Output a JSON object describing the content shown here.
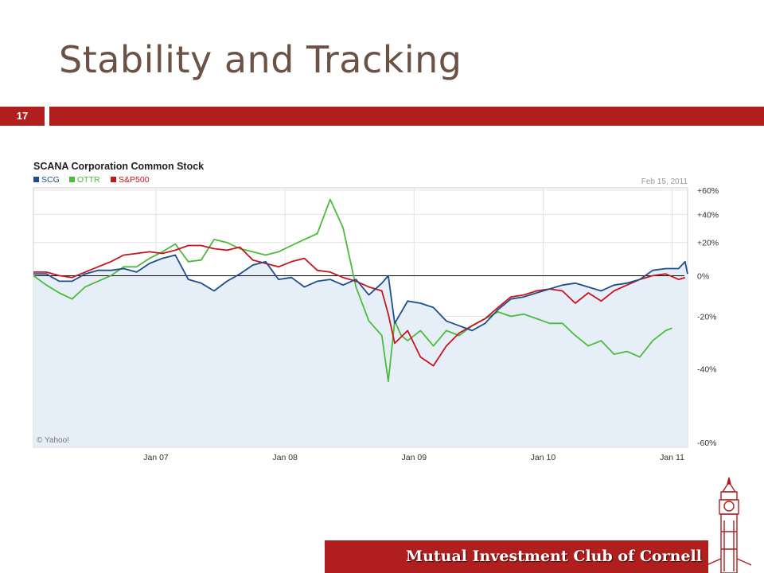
{
  "slide": {
    "title": "Stability and Tracking",
    "number": "17",
    "footer": "Mutual Investment Club of Cornell"
  },
  "colors": {
    "accent": "#b01e1e",
    "title": "#6b5245"
  },
  "chart_data": {
    "type": "line",
    "title": "SCANA Corporation Common Stock",
    "date_label": "Feb 15, 2011",
    "credit": "© Yahoo!",
    "x_labels": [
      "Jan 07",
      "Jan 08",
      "Jan 09",
      "Jan 10",
      "Jan 11"
    ],
    "x_range": [
      2006.05,
      2011.12
    ],
    "y_labels": [
      "+60%",
      "+40%",
      "+20%",
      "0%",
      "-20%",
      "-40%",
      "-60%"
    ],
    "y_tick_values": [
      60,
      40,
      20,
      0,
      -20,
      -40,
      -60
    ],
    "y_scale": "log-like (percent change)",
    "grid": true,
    "legend_position": "top-left",
    "series": [
      {
        "name": "SCG",
        "color": "#1f4e8c",
        "x": [
          2006.05,
          2006.15,
          2006.25,
          2006.35,
          2006.45,
          2006.55,
          2006.65,
          2006.75,
          2006.85,
          2006.95,
          2007.05,
          2007.15,
          2007.25,
          2007.35,
          2007.45,
          2007.55,
          2007.65,
          2007.75,
          2007.85,
          2007.95,
          2008.05,
          2008.15,
          2008.25,
          2008.35,
          2008.45,
          2008.55,
          2008.65,
          2008.75,
          2008.8,
          2008.85,
          2008.95,
          2009.05,
          2009.15,
          2009.25,
          2009.35,
          2009.45,
          2009.55,
          2009.65,
          2009.75,
          2009.85,
          2009.95,
          2010.05,
          2010.15,
          2010.25,
          2010.35,
          2010.45,
          2010.55,
          2010.65,
          2010.75,
          2010.85,
          2010.95,
          2011.05,
          2011.1,
          2011.12
        ],
        "y": [
          1,
          1,
          -3,
          -3,
          1,
          3,
          3,
          4,
          2,
          7,
          10,
          12,
          -2,
          -4,
          -8,
          -3,
          1,
          6,
          8,
          -2,
          -1,
          -6,
          -3,
          -2,
          -5,
          -2,
          -10,
          -4,
          0,
          -23,
          -13,
          -14,
          -16,
          -22,
          -24,
          -26,
          -23,
          -17,
          -12,
          -11,
          -9,
          -7,
          -5,
          -4,
          -6,
          -8,
          -5,
          -4,
          -2,
          3,
          4,
          4,
          8,
          1
        ]
      },
      {
        "name": "OTTR",
        "color": "#4cbb3c",
        "x": [
          2006.05,
          2006.15,
          2006.25,
          2006.35,
          2006.45,
          2006.55,
          2006.65,
          2006.75,
          2006.85,
          2006.95,
          2007.05,
          2007.15,
          2007.25,
          2007.35,
          2007.45,
          2007.55,
          2007.65,
          2007.75,
          2007.85,
          2007.95,
          2008.05,
          2008.15,
          2008.25,
          2008.35,
          2008.45,
          2008.55,
          2008.65,
          2008.75,
          2008.8,
          2008.85,
          2008.9,
          2008.95,
          2009.05,
          2009.15,
          2009.25,
          2009.35,
          2009.45,
          2009.55,
          2009.65,
          2009.75,
          2009.85,
          2009.95,
          2010.05,
          2010.15,
          2010.25,
          2010.35,
          2010.45,
          2010.55,
          2010.65,
          2010.75,
          2010.85,
          2010.95,
          2011.0
        ],
        "y": [
          0,
          -5,
          -9,
          -12,
          -6,
          -3,
          0,
          5,
          5,
          10,
          14,
          19,
          8,
          9,
          22,
          20,
          16,
          14,
          12,
          14,
          18,
          22,
          26,
          52,
          30,
          -6,
          -22,
          -28,
          -44,
          -22,
          -28,
          -30,
          -26,
          -32,
          -26,
          -28,
          -24,
          -21,
          -18,
          -20,
          -19,
          -21,
          -23,
          -23,
          -28,
          -32,
          -30,
          -35,
          -34,
          -36,
          -30,
          -26,
          -25
        ]
      },
      {
        "name": "S&P500",
        "color": "#c8141e",
        "x": [
          2006.05,
          2006.15,
          2006.25,
          2006.35,
          2006.45,
          2006.55,
          2006.65,
          2006.75,
          2006.85,
          2006.95,
          2007.05,
          2007.15,
          2007.25,
          2007.35,
          2007.45,
          2007.55,
          2007.65,
          2007.75,
          2007.85,
          2007.95,
          2008.05,
          2008.15,
          2008.25,
          2008.35,
          2008.45,
          2008.55,
          2008.65,
          2008.75,
          2008.8,
          2008.85,
          2008.95,
          2009.05,
          2009.15,
          2009.25,
          2009.35,
          2009.45,
          2009.55,
          2009.65,
          2009.75,
          2009.85,
          2009.95,
          2010.05,
          2010.15,
          2010.25,
          2010.35,
          2010.45,
          2010.55,
          2010.65,
          2010.75,
          2010.85,
          2010.95,
          2011.05,
          2011.1
        ],
        "y": [
          2,
          2,
          0,
          -1,
          2,
          5,
          8,
          12,
          13,
          14,
          13,
          15,
          18,
          18,
          16,
          15,
          17,
          9,
          7,
          5,
          8,
          10,
          3,
          2,
          -1,
          -3,
          -6,
          -8,
          -19,
          -31,
          -26,
          -36,
          -39,
          -32,
          -27,
          -24,
          -21,
          -16,
          -11,
          -10,
          -8,
          -7,
          -8,
          -14,
          -9,
          -13,
          -8,
          -5,
          -2,
          0,
          1,
          -2,
          -1
        ]
      }
    ]
  }
}
